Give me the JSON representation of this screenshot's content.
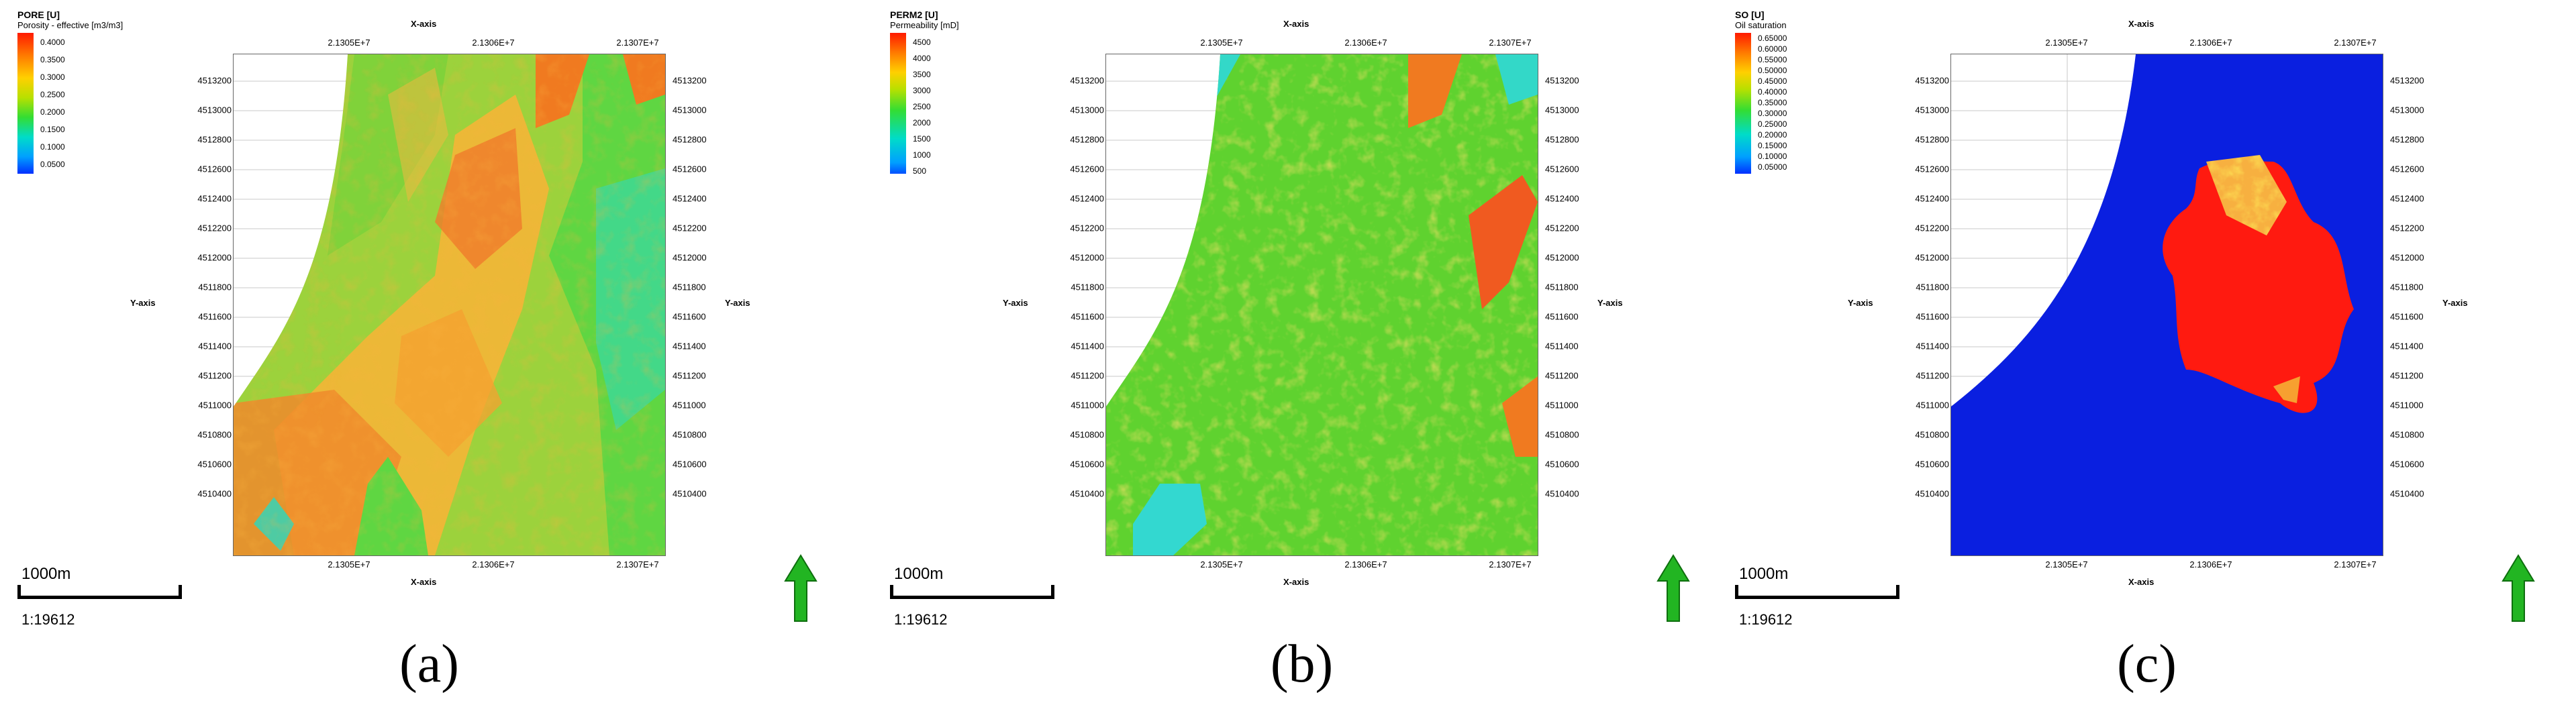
{
  "panels": [
    {
      "caption": "(a)",
      "legend": {
        "title": "PORE [U]",
        "subtitle": "Porosity - effective [m3/m3]",
        "ticks": [
          "0.4000",
          "0.3500",
          "0.3000",
          "0.2500",
          "0.2000",
          "0.1500",
          "0.1000",
          "0.0500"
        ]
      },
      "colormap": "rainbow",
      "background_color": "#9cd23c",
      "x_axis": {
        "name": "X-axis",
        "ticks": [
          "2.1305E+7",
          "2.1306E+7",
          "2.1307E+7"
        ]
      },
      "y_axis": {
        "name": "Y-axis",
        "ticks": [
          "4513200",
          "4513000",
          "4512800",
          "4512600",
          "4512400",
          "4512200",
          "4512000",
          "4511800",
          "4511600",
          "4511400",
          "4511200",
          "4511000",
          "4510800",
          "4510600",
          "4510400"
        ]
      },
      "scale_bar": {
        "length": "1000m",
        "ratio": "1:19612"
      },
      "north_arrow_color": "#22b522"
    },
    {
      "caption": "(b)",
      "legend": {
        "title": "PERM2 [U]",
        "subtitle": "Permeability [mD]",
        "ticks": [
          "4500",
          "4000",
          "3500",
          "3000",
          "2500",
          "2000",
          "1500",
          "1000",
          "500"
        ]
      },
      "colormap": "rainbow",
      "background_color": "#5fd22f",
      "x_axis": {
        "name": "X-axis",
        "ticks": [
          "2.1305E+7",
          "2.1306E+7",
          "2.1307E+7"
        ]
      },
      "y_axis": {
        "name": "Y-axis",
        "ticks": [
          "4513200",
          "4513000",
          "4512800",
          "4512600",
          "4512400",
          "4512200",
          "4512000",
          "4511800",
          "4511600",
          "4511400",
          "4511200",
          "4511000",
          "4510800",
          "4510600",
          "4510400"
        ]
      },
      "scale_bar": {
        "length": "1000m",
        "ratio": "1:19612"
      },
      "north_arrow_color": "#22b522"
    },
    {
      "caption": "(c)",
      "legend": {
        "title": "SO [U]",
        "subtitle": "Oil saturation",
        "ticks": [
          "0.65000",
          "0.60000",
          "0.55000",
          "0.50000",
          "0.45000",
          "0.40000",
          "0.35000",
          "0.30000",
          "0.25000",
          "0.20000",
          "0.15000",
          "0.10000",
          "0.05000"
        ]
      },
      "colormap": "rainbow",
      "background_color": "#0a1fe0",
      "x_axis": {
        "name": "X-axis",
        "ticks": [
          "2.1305E+7",
          "2.1306E+7",
          "2.1307E+7"
        ]
      },
      "y_axis": {
        "name": "Y-axis",
        "ticks": [
          "4513200",
          "4513000",
          "4512800",
          "4512600",
          "4512400",
          "4512200",
          "4512000",
          "4511800",
          "4511600",
          "4511400",
          "4511200",
          "4511000",
          "4510800",
          "4510600",
          "4510400"
        ]
      },
      "scale_bar": {
        "length": "1000m",
        "ratio": "1:19612"
      },
      "north_arrow_color": "#22b522"
    }
  ]
}
